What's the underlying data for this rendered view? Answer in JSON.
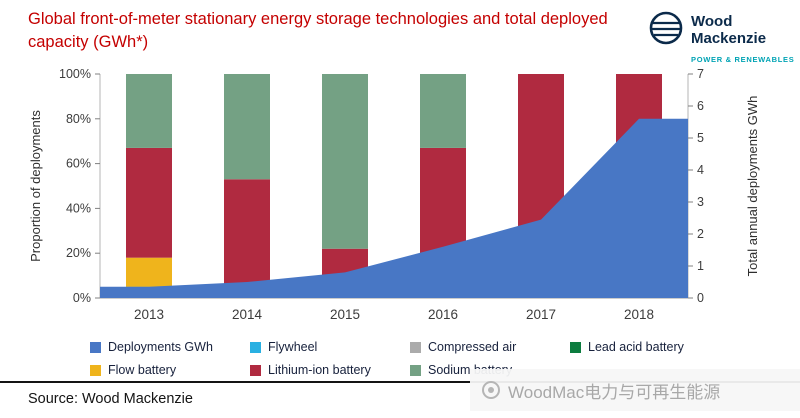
{
  "header": {
    "title": "Global front-of-meter stationary energy storage technologies and total deployed capacity (GWh*)",
    "logo": {
      "name_line1": "Wood",
      "name_line2": "Mackenzie",
      "tagline": "POWER & RENEWABLES"
    }
  },
  "chart_data": {
    "type": "bar",
    "subtype": "100%-stacked-bars-with-area-overlay",
    "title": "Global front-of-meter stationary energy storage technologies and total deployed capacity (GWh*)",
    "categories": [
      "2013",
      "2014",
      "2015",
      "2016",
      "2017",
      "2018"
    ],
    "left_axis": {
      "label": "Proportion of deployments",
      "ticks": [
        "0%",
        "20%",
        "40%",
        "60%",
        "80%",
        "100%"
      ],
      "min": 0,
      "max": 100
    },
    "right_axis": {
      "label": "Total annual deployments GWh",
      "ticks": [
        "0",
        "1",
        "2",
        "3",
        "4",
        "5",
        "6",
        "7"
      ],
      "min": 0,
      "max": 7
    },
    "stacked_series": [
      {
        "name": "Flywheel",
        "color": "#29b0e2",
        "values": [
          0,
          0,
          0,
          0,
          0,
          1
        ]
      },
      {
        "name": "Compressed air",
        "color": "#ababab",
        "values": [
          0,
          0,
          0,
          0,
          0,
          0
        ]
      },
      {
        "name": "Lead acid battery",
        "color": "#0c7c3f",
        "values": [
          5,
          1,
          1,
          3,
          0,
          3
        ]
      },
      {
        "name": "Flow battery",
        "color": "#efb41c",
        "values": [
          13,
          2,
          1,
          7,
          2,
          0
        ]
      },
      {
        "name": "Lithium-ion battery",
        "color": "#b02a40",
        "values": [
          49,
          50,
          20,
          57,
          98,
          96
        ]
      },
      {
        "name": "Sodium battery",
        "color": "#74a184",
        "values": [
          33,
          47,
          78,
          33,
          0,
          0
        ]
      }
    ],
    "area_series": {
      "name": "Deployments GWh",
      "color": "#4877c5",
      "unit": "GWh",
      "values": [
        0.35,
        0.5,
        0.8,
        1.6,
        2.45,
        5.6
      ]
    },
    "legend_rows": [
      [
        "Deployments GWh",
        "Flywheel",
        "Compressed air",
        "Lead acid battery"
      ],
      [
        "Flow battery",
        "Lithium-ion battery",
        "Sodium battery"
      ]
    ]
  },
  "footer": {
    "source": "Source: Wood Mackenzie",
    "watermark": "WoodMac电力与可再生能源"
  }
}
